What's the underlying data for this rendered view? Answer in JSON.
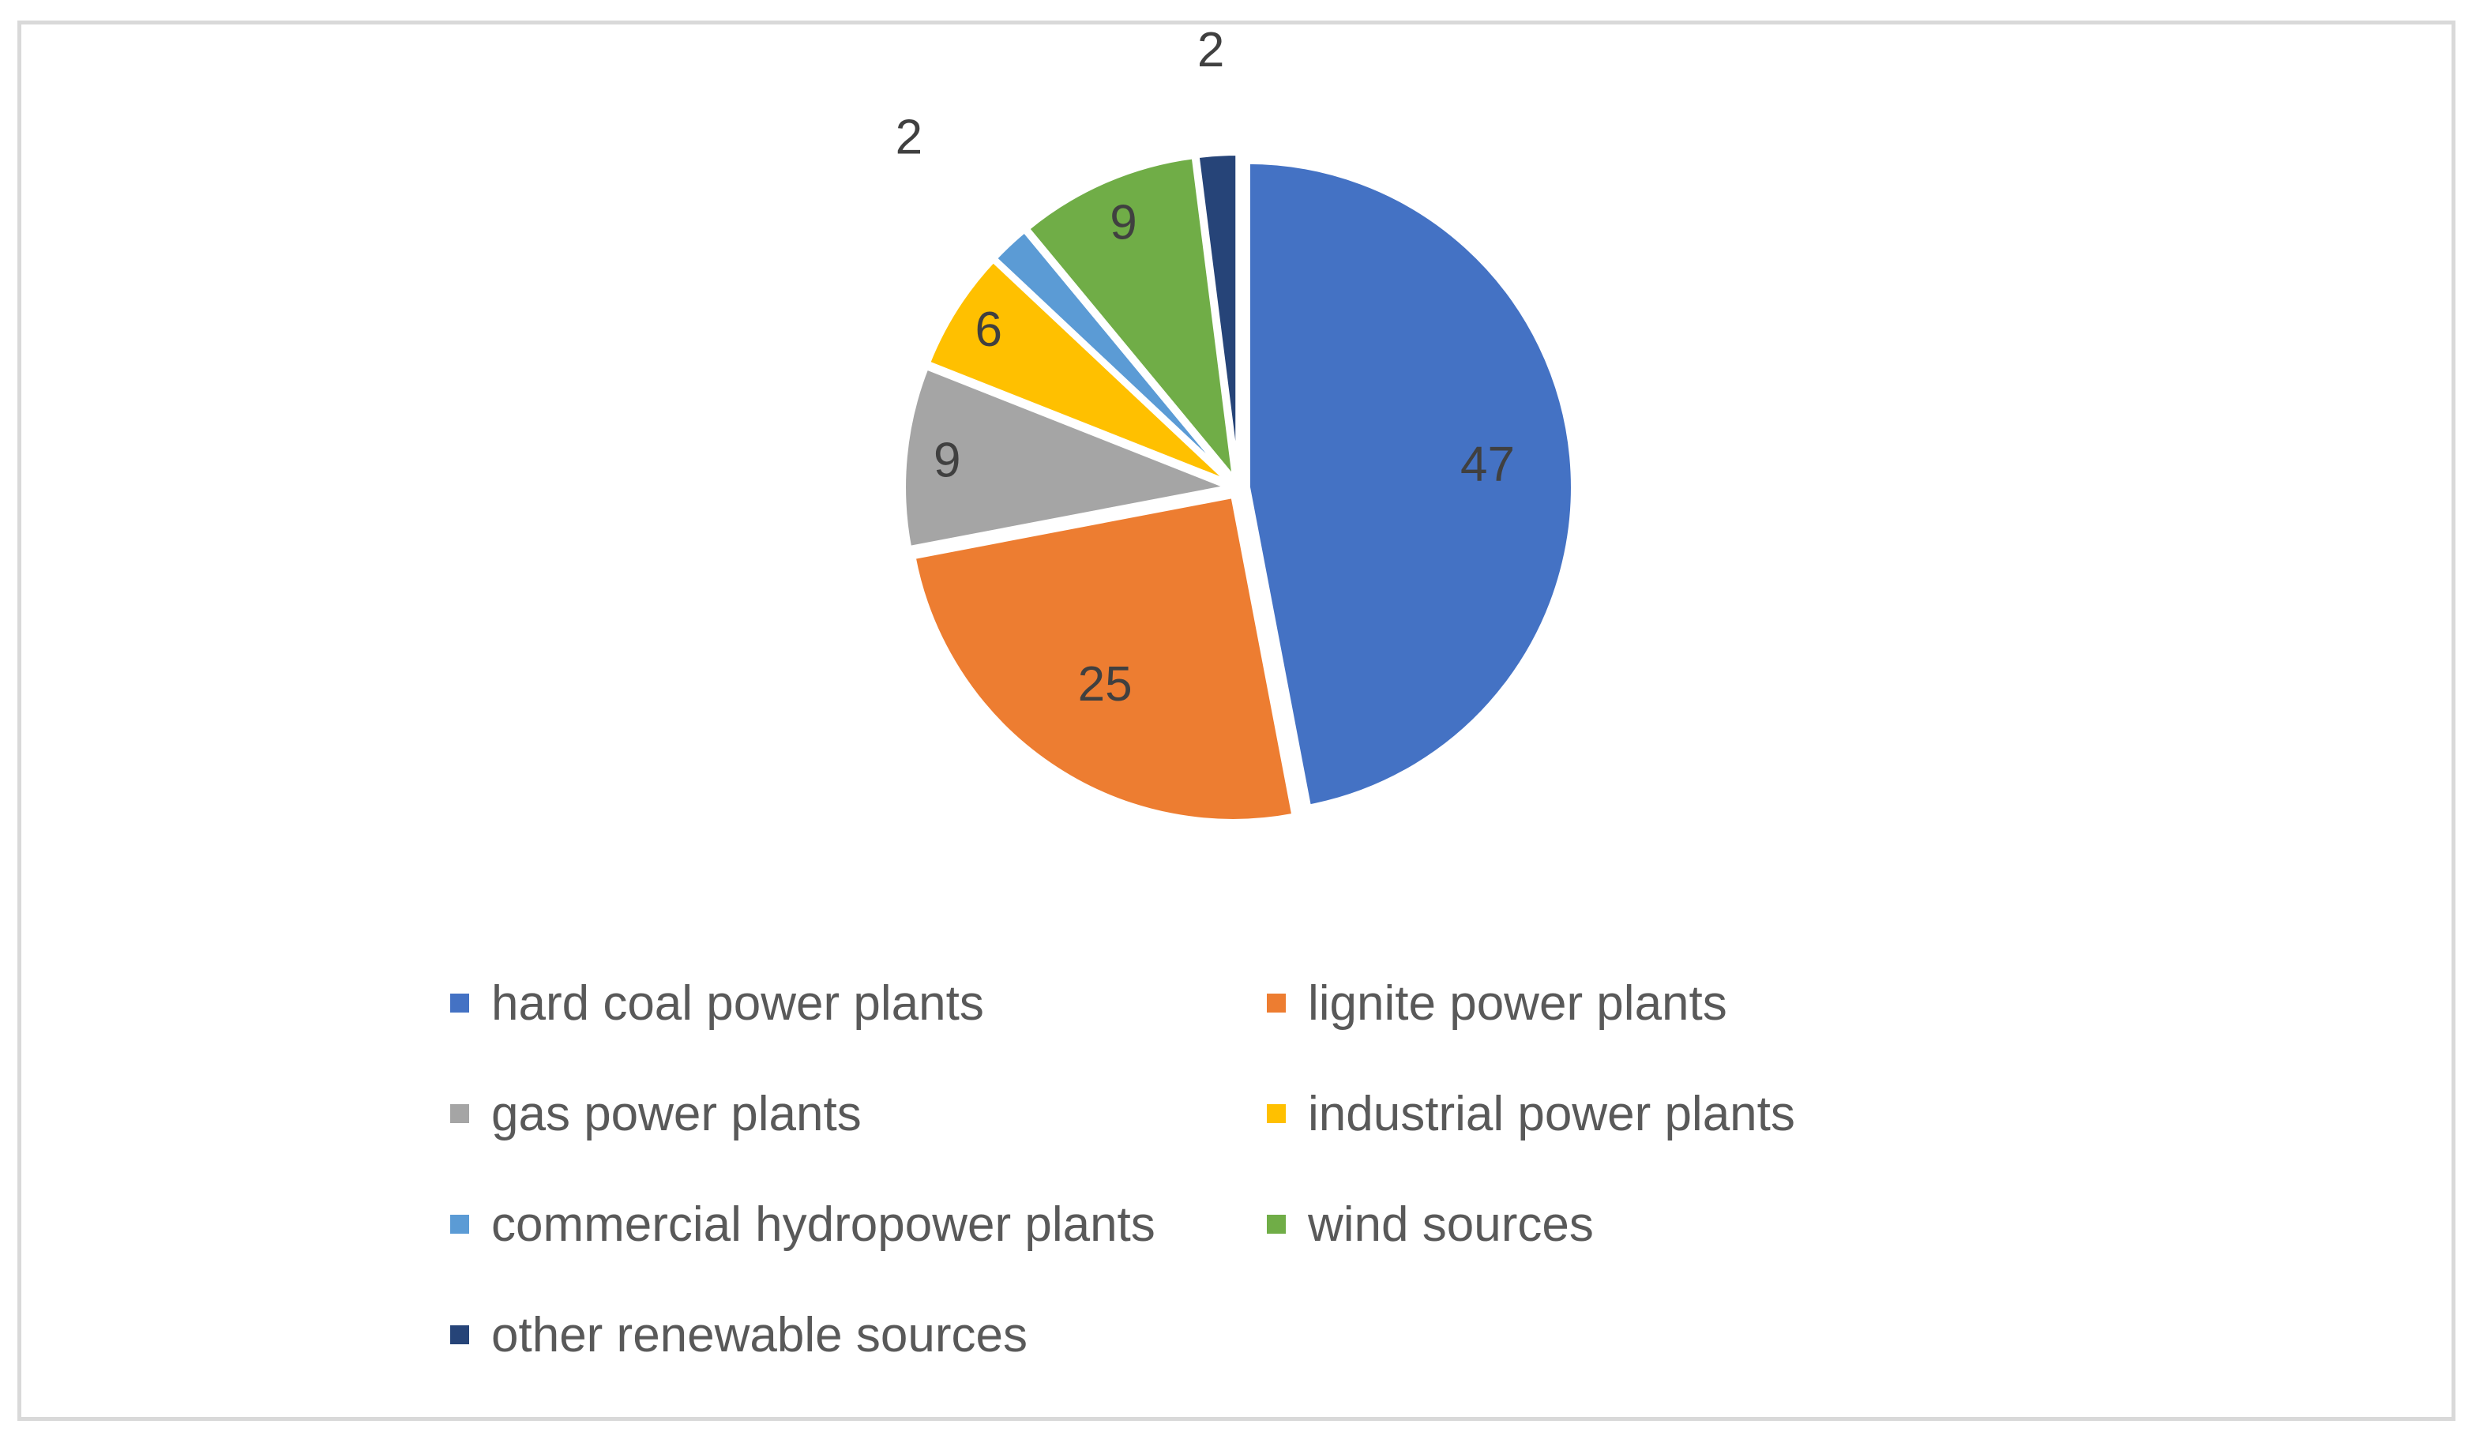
{
  "chart_data": {
    "type": "pie",
    "title": "",
    "categories": [
      "hard coal power plants",
      "lignite power plants",
      "gas power plants",
      "industrial power plants",
      "commercial hydropower plants",
      "wind sources",
      "other renewable sources"
    ],
    "values": [
      47,
      25,
      9,
      6,
      2,
      9,
      2
    ],
    "colors": [
      "#4472C4",
      "#ED7D31",
      "#A5A5A5",
      "#FFC000",
      "#5B9BD5",
      "#70AD47",
      "#264478"
    ],
    "data_labels": [
      "47",
      "25",
      "9",
      "6",
      "2",
      "9",
      "2"
    ],
    "legend_position": "bottom",
    "exploded": true
  }
}
